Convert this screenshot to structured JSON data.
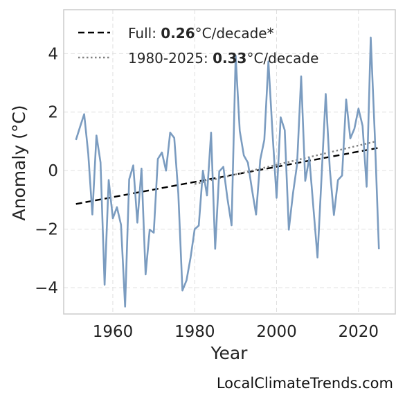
{
  "chart_data": {
    "type": "line",
    "title": "",
    "xlabel": "Year",
    "ylabel": "Anomaly (°C)",
    "xlim": [
      1948,
      2029
    ],
    "ylim": [
      -4.9,
      5.5
    ],
    "xticks": [
      1960,
      1980,
      2000,
      2020
    ],
    "yticks": [
      -4,
      -2,
      0,
      2,
      4
    ],
    "xtick_labels": [
      "1960",
      "1980",
      "2000",
      "2020"
    ],
    "ytick_labels": [
      "−4",
      "−2",
      "0",
      "2",
      "4"
    ],
    "grid": true,
    "legend_position": "top-left",
    "colors": {
      "series": "#7b9cc0",
      "full_trend": "#000000",
      "recent_trend": "#808080",
      "grid": "#e0e0e0",
      "frame": "#cccccc"
    },
    "series": [
      {
        "x": [
          1951,
          1952,
          1953,
          1954,
          1955,
          1956,
          1957,
          1958,
          1959,
          1960,
          1961,
          1962,
          1963,
          1964,
          1965,
          1966,
          1967,
          1968,
          1969,
          1970,
          1971,
          1972,
          1973,
          1974,
          1975,
          1976,
          1977,
          1978,
          1979,
          1980,
          1981,
          1982,
          1983,
          1984,
          1985,
          1986,
          1987,
          1988,
          1989,
          1990,
          1991,
          1992,
          1993,
          1994,
          1995,
          1996,
          1997,
          1998,
          1999,
          2000,
          2001,
          2002,
          2003,
          2004,
          2005,
          2006,
          2007,
          2008,
          2009,
          2010,
          2011,
          2012,
          2013,
          2014,
          2015,
          2016,
          2017,
          2018,
          2019,
          2020,
          2021,
          2022,
          2023,
          2024,
          2025
        ],
        "values": [
          1.05,
          1.5,
          1.93,
          0.57,
          -1.5,
          1.2,
          0.28,
          -3.9,
          -0.32,
          -1.63,
          -1.25,
          -1.85,
          -4.65,
          -0.3,
          0.18,
          -1.78,
          0.07,
          -3.55,
          -2.02,
          -2.12,
          0.4,
          0.62,
          0.0,
          1.3,
          1.12,
          -0.8,
          -4.1,
          -3.75,
          -2.97,
          -2.0,
          -1.88,
          0.0,
          -0.85,
          1.3,
          -2.67,
          -0.03,
          0.13,
          -0.95,
          -1.87,
          3.93,
          1.36,
          0.52,
          0.27,
          -0.65,
          -1.5,
          0.37,
          1.05,
          3.73,
          1.3,
          -0.93,
          1.82,
          1.38,
          -2.02,
          -0.78,
          0.21,
          3.22,
          -0.35,
          0.44,
          -1.27,
          -2.97,
          -0.15,
          2.62,
          0.05,
          -1.52,
          -0.32,
          -0.17,
          2.43,
          1.1,
          1.43,
          2.12,
          1.53,
          -0.55,
          4.55,
          1.2,
          -2.68
        ]
      }
    ],
    "trends": [
      {
        "label_prefix": "Full: ",
        "label_value": "0.26",
        "label_suffix": "°C/decade*",
        "style": "dashed",
        "x": [
          1951,
          2025
        ],
        "y": [
          -1.14,
          0.78
        ]
      },
      {
        "label_prefix": "1980-2025: ",
        "label_value": "0.33",
        "label_suffix": "°C/decade",
        "style": "dotted",
        "x": [
          1980,
          2024
        ],
        "y": [
          -0.46,
          0.99
        ]
      }
    ]
  },
  "watermark": "LocalClimateTrends.com"
}
